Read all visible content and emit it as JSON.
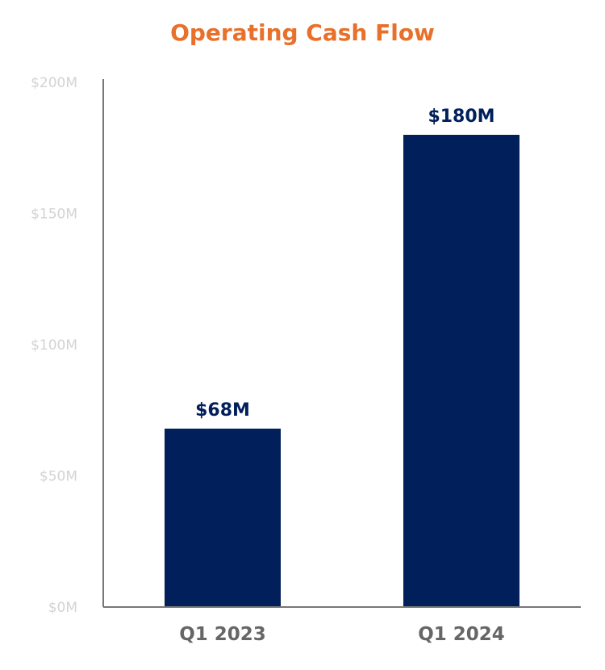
{
  "chart_data": {
    "type": "bar",
    "title": "Operating Cash Flow",
    "categories": [
      "Q1 2023",
      "Q1 2024"
    ],
    "values": [
      68,
      180
    ],
    "data_labels": [
      "$68M",
      "$180M"
    ],
    "ylim": [
      0,
      200
    ],
    "yticks": [
      0,
      50,
      100,
      150,
      200
    ],
    "ytick_labels": [
      "$0M",
      "$50M",
      "$100M",
      "$150M",
      "$200M"
    ],
    "xlabel": "",
    "ylabel": "",
    "grid": false,
    "colors": {
      "title": "#e8702a",
      "bar": "#001f5b",
      "data_label": "#001f5b",
      "axis": "#777777",
      "tick_label": "#d3d3d6",
      "category_label": "#666666"
    }
  }
}
